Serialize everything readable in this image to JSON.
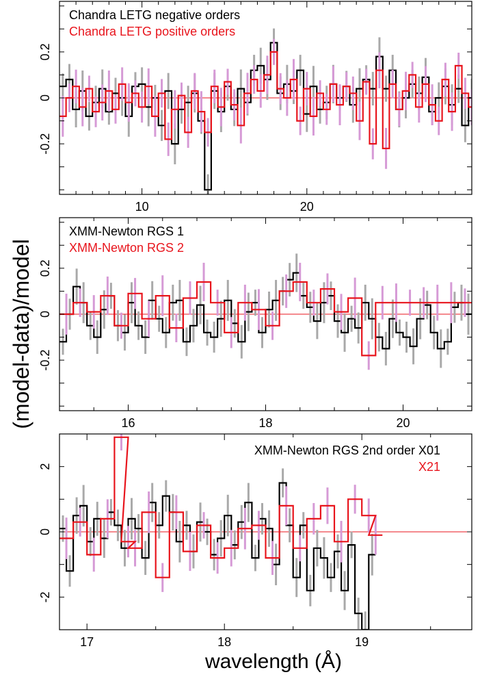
{
  "figure": {
    "ylabel": "(model-data)/model",
    "xlabel": "wavelength (Å)"
  },
  "colors": {
    "black_series": "#000000",
    "black_error": "#a9a9a9",
    "red_series": "#e8141c",
    "red_error": "#d69ad6",
    "zero_line": "#e8141c",
    "axes": "#000000"
  },
  "chart_data": [
    {
      "type": "line",
      "panel": "top",
      "legend": [
        "Chandra LETG negative orders",
        "Chandra LETG positive orders"
      ],
      "legend_placement": "top-left",
      "xlim": [
        5,
        30
      ],
      "ylim": [
        -0.42,
        0.42
      ],
      "xticks": [
        10,
        20
      ],
      "yticks": [
        -0.2,
        0,
        0.2
      ],
      "ytick_labels": [
        "-0.2",
        "0",
        "0.2"
      ],
      "grid": false,
      "zero_line": 0,
      "series": [
        {
          "name": "Chandra LETG negative orders",
          "color": "black",
          "x": [
            5.0,
            5.4,
            5.8,
            6.2,
            6.6,
            7.0,
            7.4,
            7.8,
            8.2,
            8.6,
            9.0,
            9.4,
            9.8,
            10.2,
            10.6,
            11.0,
            11.4,
            11.8,
            12.2,
            12.6,
            13.0,
            13.4,
            13.8,
            14.2,
            14.6,
            15.0,
            15.4,
            15.8,
            16.2,
            16.6,
            17.0,
            17.4,
            17.8,
            18.2,
            18.6,
            19.0,
            19.4,
            19.8,
            20.2,
            20.6,
            21.0,
            21.4,
            21.8,
            22.2,
            22.6,
            23.0,
            23.4,
            23.8,
            24.2,
            24.6,
            25.0,
            25.4,
            25.8,
            26.2,
            26.6,
            27.0,
            27.4,
            27.8,
            28.2,
            28.6,
            29.0,
            29.4,
            29.8
          ],
          "y": [
            0.05,
            0.08,
            -0.05,
            0.03,
            -0.08,
            -0.02,
            0.04,
            -0.06,
            0.02,
            0.0,
            -0.08,
            0.05,
            0.06,
            -0.04,
            0.0,
            -0.12,
            0.03,
            -0.2,
            -0.05,
            -0.02,
            0.02,
            -0.1,
            -0.4,
            0.03,
            -0.06,
            0.05,
            -0.05,
            0.04,
            -0.02,
            0.12,
            0.14,
            0.08,
            0.24,
            0.02,
            0.06,
            0.03,
            0.12,
            -0.07,
            0.05,
            -0.05,
            -0.02,
            0.06,
            0.0,
            0.05,
            -0.03,
            0.04,
            0.08,
            0.04,
            0.18,
            0.04,
            0.12,
            -0.05,
            0.0,
            0.06,
            0.02,
            0.09,
            -0.06,
            0.0,
            0.05,
            -0.03,
            0.04,
            -0.12,
            0.0
          ]
        },
        {
          "name": "Chandra LETG positive orders",
          "color": "red",
          "x": [
            5.0,
            5.4,
            5.8,
            6.2,
            6.6,
            7.0,
            7.4,
            7.8,
            8.2,
            8.6,
            9.0,
            9.4,
            9.8,
            10.2,
            10.6,
            11.0,
            11.4,
            11.8,
            12.2,
            12.6,
            13.0,
            13.4,
            13.8,
            14.2,
            14.6,
            15.0,
            15.4,
            15.8,
            16.2,
            16.6,
            17.0,
            17.4,
            17.8,
            18.2,
            18.6,
            19.0,
            19.4,
            19.8,
            20.2,
            20.6,
            21.0,
            21.4,
            21.8,
            22.2,
            22.6,
            23.0,
            23.4,
            23.8,
            24.2,
            24.6,
            25.0,
            25.4,
            25.8,
            26.2,
            26.6,
            27.0,
            27.4,
            27.8,
            28.2,
            28.6,
            29.0,
            29.4,
            29.8
          ],
          "y": [
            -0.08,
            0.0,
            0.05,
            -0.04,
            0.04,
            -0.06,
            -0.02,
            0.03,
            -0.05,
            0.06,
            -0.02,
            0.02,
            -0.04,
            0.05,
            -0.08,
            0.02,
            -0.18,
            -0.05,
            0.01,
            -0.15,
            0.03,
            -0.06,
            -0.15,
            0.05,
            -0.04,
            0.07,
            -0.03,
            -0.12,
            0.02,
            0.08,
            0.03,
            0.1,
            0.2,
            0.04,
            0.0,
            0.08,
            -0.1,
            0.04,
            -0.08,
            0.02,
            -0.05,
            0.06,
            -0.03,
            0.05,
            0.02,
            -0.1,
            0.07,
            -0.2,
            0.12,
            -0.22,
            0.06,
            -0.05,
            0.03,
            0.1,
            -0.04,
            0.06,
            -0.03,
            -0.1,
            0.08,
            -0.06,
            0.14,
            0.02,
            -0.04
          ]
        }
      ]
    },
    {
      "type": "line",
      "panel": "middle",
      "legend": [
        "XMM-Newton RGS 1",
        "XMM-Newton RGS 2"
      ],
      "legend_placement": "top-left",
      "xlim": [
        15.0,
        21.0
      ],
      "ylim": [
        -0.42,
        0.42
      ],
      "xticks": [
        16,
        18,
        20
      ],
      "yticks": [
        -0.2,
        0,
        0.2
      ],
      "ytick_labels": [
        "-0.2",
        "0",
        "0.2"
      ],
      "grid": false,
      "zero_line": 0,
      "series": [
        {
          "name": "XMM-Newton RGS 1",
          "color": "black",
          "x": [
            15.0,
            15.1,
            15.2,
            15.3,
            15.4,
            15.5,
            15.6,
            15.7,
            15.8,
            15.9,
            16.0,
            16.1,
            16.2,
            16.3,
            16.4,
            16.5,
            16.6,
            16.7,
            16.8,
            16.9,
            17.0,
            17.1,
            17.2,
            17.3,
            17.4,
            17.5,
            17.6,
            17.7,
            17.8,
            17.9,
            18.0,
            18.1,
            18.2,
            18.3,
            18.4,
            18.5,
            18.6,
            18.7,
            18.8,
            18.9,
            19.0,
            19.1,
            19.2,
            19.3,
            19.4,
            19.5,
            19.6,
            19.7,
            19.8,
            19.9,
            20.0,
            20.1,
            20.2,
            20.3,
            20.4,
            20.5,
            20.6,
            20.7,
            20.8,
            20.9
          ],
          "y": [
            -0.12,
            0.0,
            0.12,
            0.05,
            -0.05,
            -0.1,
            0.02,
            0.08,
            -0.05,
            -0.08,
            0.05,
            -0.05,
            -0.1,
            0.06,
            -0.02,
            -0.08,
            0.05,
            0.06,
            -0.12,
            -0.05,
            0.04,
            -0.08,
            -0.1,
            -0.02,
            0.06,
            -0.04,
            -0.12,
            0.01,
            0.05,
            -0.08,
            0.02,
            0.06,
            0.1,
            0.15,
            0.18,
            0.08,
            0.03,
            -0.03,
            0.05,
            0.08,
            -0.03,
            -0.08,
            -0.02,
            -0.06,
            0.05,
            -0.02,
            -0.1,
            -0.15,
            -0.02,
            -0.08,
            -0.1,
            -0.14,
            -0.02,
            0.04,
            -0.08,
            -0.15,
            -0.12,
            0.03,
            0.05,
            0.0
          ]
        },
        {
          "name": "XMM-Newton RGS 2",
          "color": "red",
          "x": [
            15.0,
            15.2,
            15.4,
            15.6,
            15.8,
            16.0,
            16.2,
            16.4,
            16.6,
            16.8,
            17.0,
            17.2,
            17.4,
            17.6,
            17.8,
            18.0,
            18.2,
            18.4,
            18.6,
            18.8,
            19.0,
            19.2,
            19.4,
            19.6,
            19.8,
            20.0,
            20.2,
            20.4,
            20.6,
            20.8
          ],
          "y": [
            0.0,
            0.05,
            0.01,
            0.08,
            -0.05,
            0.09,
            -0.02,
            0.08,
            -0.06,
            0.07,
            0.14,
            0.05,
            -0.08,
            0.05,
            0.02,
            -0.05,
            0.1,
            0.14,
            0.05,
            0.11,
            0.01,
            0.07,
            -0.18,
            0.05,
            0.05,
            0.05,
            0.05,
            0.05,
            0.05,
            0.05
          ]
        }
      ]
    },
    {
      "type": "line",
      "panel": "bottom",
      "legend": [
        "XMM-Newton RGS 2nd order  X01",
        "X21"
      ],
      "legend_placement": "top-right",
      "xlim": [
        16.8,
        19.8
      ],
      "ylim": [
        -3,
        3
      ],
      "xticks": [
        17,
        18,
        19
      ],
      "yticks": [
        -2,
        0,
        2
      ],
      "ytick_labels": [
        "-2",
        "0",
        "2"
      ],
      "grid": false,
      "zero_line": 0,
      "series": [
        {
          "name": "XMM-Newton RGS 2nd order X01",
          "color": "black",
          "x": [
            16.8,
            16.85,
            16.9,
            16.95,
            17.0,
            17.05,
            17.1,
            17.15,
            17.2,
            17.25,
            17.3,
            17.35,
            17.4,
            17.45,
            17.5,
            17.55,
            17.6,
            17.65,
            17.7,
            17.75,
            17.8,
            17.85,
            17.9,
            17.95,
            18.0,
            18.05,
            18.1,
            18.15,
            18.2,
            18.25,
            18.3,
            18.35,
            18.4,
            18.45,
            18.5,
            18.55,
            18.6,
            18.65,
            18.7,
            18.75,
            18.8,
            18.85,
            18.9,
            18.95,
            19.0,
            19.05
          ],
          "y": [
            0.1,
            -1.2,
            0.5,
            0.8,
            -0.3,
            0.4,
            -0.2,
            0.6,
            0.2,
            -0.5,
            0.4,
            0.1,
            -0.8,
            0.9,
            0.2,
            1.1,
            0.6,
            -0.3,
            0.2,
            -0.6,
            0.3,
            0.0,
            -0.7,
            -0.2,
            0.5,
            -0.4,
            0.3,
            0.9,
            -0.8,
            0.4,
            0.1,
            -1.0,
            1.5,
            0.2,
            -1.4,
            0.2,
            -1.8,
            -0.5,
            -0.8,
            -1.4,
            -0.6,
            -1.8,
            -0.4,
            -2.5,
            -3.0,
            -0.7
          ]
        },
        {
          "name": "X21",
          "color": "red",
          "x": [
            16.8,
            16.9,
            17.0,
            17.1,
            17.2,
            17.25,
            17.3,
            17.4,
            17.5,
            17.6,
            17.7,
            17.8,
            17.9,
            18.0,
            18.1,
            18.2,
            18.3,
            18.4,
            18.5,
            18.6,
            18.7,
            18.8,
            18.9,
            19.0,
            19.05
          ],
          "y": [
            -0.2,
            0.3,
            -0.7,
            0.4,
            2.9,
            -0.3,
            -0.5,
            0.6,
            -1.4,
            0.6,
            -0.6,
            0.2,
            -0.8,
            -0.5,
            0.1,
            0.2,
            -0.8,
            0.8,
            -0.5,
            0.4,
            0.8,
            -0.3,
            1.0,
            0.5,
            -0.1
          ]
        }
      ]
    }
  ]
}
